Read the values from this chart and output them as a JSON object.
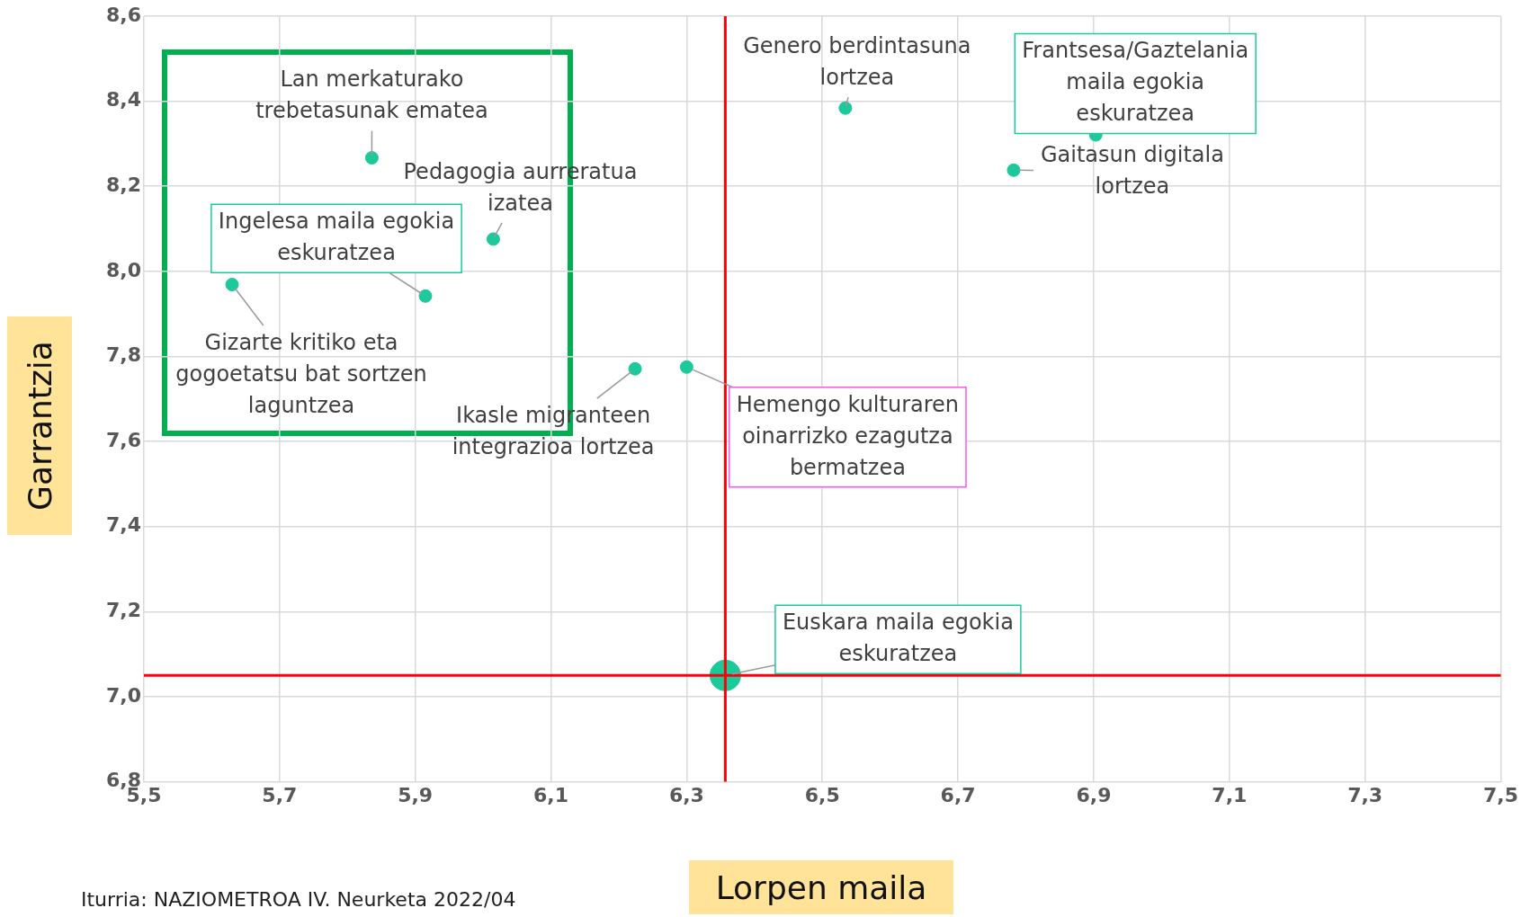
{
  "chart_data": {
    "type": "scatter",
    "xlabel": "Lorpen maila",
    "ylabel": "Garrantzia",
    "series": [
      {
        "color": "#1dc99b",
        "x": [
          5.836,
          6.015,
          5.915,
          5.63,
          6.224,
          6.3,
          6.534,
          6.782,
          6.903
        ],
        "values": [
          8.267,
          8.076,
          7.942,
          7.969,
          7.771,
          7.775,
          8.384,
          8.238,
          8.321
        ]
      },
      {
        "color": "#1dc99b",
        "x": [
          6.357
        ],
        "values": [
          7.05
        ]
      }
    ],
    "xlim": [
      5.5,
      7.5
    ],
    "xticks": [
      {
        "value": 5.5,
        "label": "5,5"
      },
      {
        "value": 5.7,
        "label": "5,7"
      },
      {
        "value": 5.9,
        "label": "5,9"
      },
      {
        "value": 6.1,
        "label": "6,1"
      },
      {
        "value": 6.3,
        "label": "6,3"
      },
      {
        "value": 6.5,
        "label": "6,5"
      },
      {
        "value": 6.7,
        "label": "6,7"
      },
      {
        "value": 6.9,
        "label": "6,9"
      },
      {
        "value": 7.1,
        "label": "7,1"
      },
      {
        "value": 7.3,
        "label": "7,3"
      },
      {
        "value": 7.5,
        "label": "7,5"
      }
    ],
    "ylim": [
      6.8,
      8.6
    ],
    "yticks": [
      {
        "value": 6.8,
        "label": "6,8"
      },
      {
        "value": 7.0,
        "label": "7,0"
      },
      {
        "value": 7.2,
        "label": "7,2"
      },
      {
        "value": 7.4,
        "label": "7,4"
      },
      {
        "value": 7.6,
        "label": "7,6"
      },
      {
        "value": 7.8,
        "label": "7,8"
      },
      {
        "value": 8.0,
        "label": "8,0"
      },
      {
        "value": 8.2,
        "label": "8,2"
      },
      {
        "value": 8.4,
        "label": "8,4"
      },
      {
        "value": 8.6,
        "label": "8,6"
      }
    ],
    "grid": true,
    "legend": false,
    "marker": "circle",
    "ref_lines": [
      {
        "axis": "x",
        "value": 6.357,
        "color": "#ff0000"
      },
      {
        "axis": "y",
        "value": 7.05,
        "color": "#ff0000"
      }
    ],
    "annotations": [
      {
        "text": "Lan merkaturako trebetasunak ematea",
        "x": 5.836,
        "y": 8.267
      },
      {
        "text": "Pedagogia aurreratua izatea",
        "x": 6.015,
        "y": 8.076
      },
      {
        "text": "Ingelesa maila egokia eskuratzea",
        "x": 5.915,
        "y": 7.942
      },
      {
        "text": "Gizarte kritiko eta gogoetatsu bat sortzen laguntzea",
        "x": 5.63,
        "y": 7.969
      },
      {
        "text": "Ikasle migranteen integrazioa lortzea",
        "x": 6.224,
        "y": 7.771
      },
      {
        "text": "Hemengo kulturaren oinarrizko ezagutza bermatzea",
        "x": 6.3,
        "y": 7.775
      },
      {
        "text": "Euskara maila egokia eskuratzea",
        "x": 6.357,
        "y": 7.05
      },
      {
        "text": "Genero berdintasuna lortzea",
        "x": 6.534,
        "y": 8.384
      },
      {
        "text": "Gaitasun digitala lortzea",
        "x": 6.782,
        "y": 8.238
      },
      {
        "text": "Frantsesa/Gaztelania maila egokia eskuratzea",
        "x": 6.903,
        "y": 8.321
      },
      "Iturria: NAZIOMETROA IV. Neurketa 2022/04"
    ]
  }
}
